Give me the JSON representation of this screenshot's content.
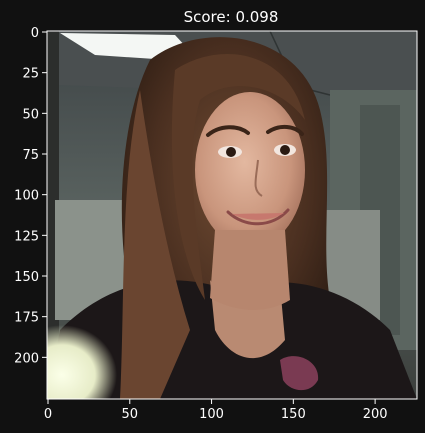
{
  "chart_data": {
    "type": "image",
    "title": "Score: 0.098",
    "xlim": [
      0,
      224
    ],
    "ylim": [
      224,
      0
    ],
    "x_ticks": [
      0,
      50,
      100,
      150,
      200
    ],
    "y_ticks": [
      0,
      25,
      50,
      75,
      100,
      125,
      150,
      175,
      200
    ],
    "grid": false
  },
  "colors": {
    "background": "#111111",
    "axes_frame": "#ffffff",
    "text": "#ffffff"
  },
  "image_subject": "selfie-photo"
}
